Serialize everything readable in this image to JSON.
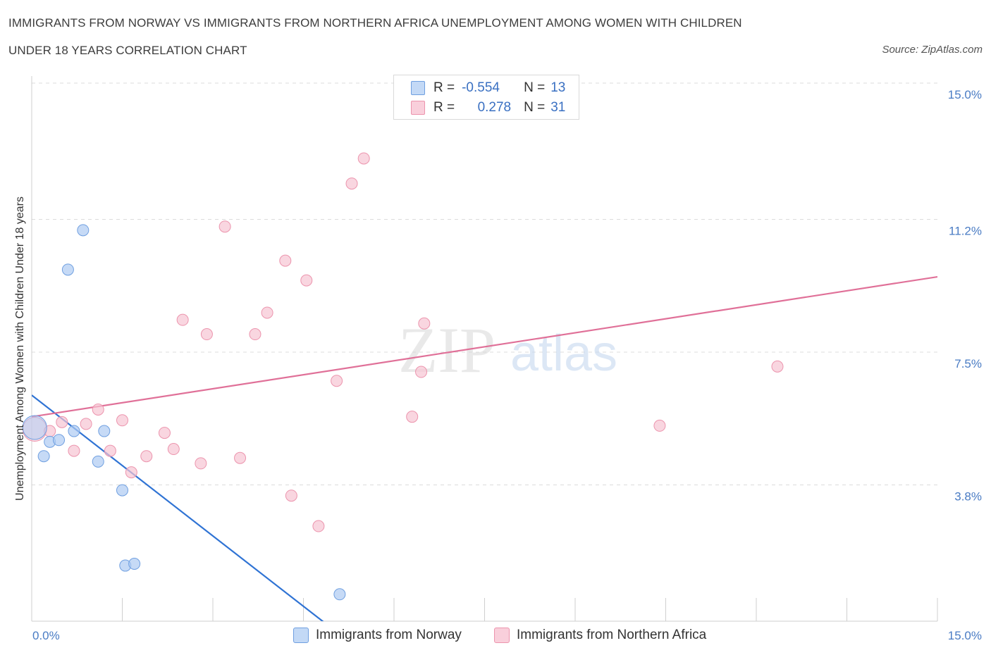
{
  "chart_data": {
    "type": "scatter",
    "title_line1": "IMMIGRANTS FROM NORWAY VS IMMIGRANTS FROM NORTHERN AFRICA UNEMPLOYMENT AMONG WOMEN WITH CHILDREN",
    "title_line2": "UNDER 18 YEARS CORRELATION CHART",
    "source": "Source: ZipAtlas.com",
    "ylabel": "Unemployment Among Women with Children Under 18 years",
    "xlim": [
      0,
      15
    ],
    "ylim": [
      0,
      15
    ],
    "x_tick_labels": [
      "0.0%",
      "15.0%"
    ],
    "y_ticks": [
      3.8,
      7.5,
      11.2,
      15.0
    ],
    "y_tick_labels": [
      "3.8%",
      "7.5%",
      "11.2%",
      "15.0%"
    ],
    "watermark": {
      "zip": "ZIP",
      "atlas": "atlas"
    },
    "legend": {
      "rows": [
        {
          "r_label": "R =",
          "r_value": "-0.554",
          "n_label": "N =",
          "n_value": "13"
        },
        {
          "r_label": "R =",
          "r_value": "0.278",
          "n_label": "N =",
          "n_value": "31"
        }
      ]
    },
    "series": [
      {
        "name": "Immigrants from Norway",
        "fill": "#aecbf2",
        "stroke": "#6f9fe0",
        "line_color": "#2f73d4",
        "trend": {
          "x": [
            0.0,
            5.2
          ],
          "y": [
            6.3,
            -0.5
          ]
        },
        "points": [
          {
            "x": 0.05,
            "y": 5.4,
            "size": "large"
          },
          {
            "x": 0.2,
            "y": 4.6
          },
          {
            "x": 0.3,
            "y": 5.0
          },
          {
            "x": 0.45,
            "y": 5.05
          },
          {
            "x": 0.6,
            "y": 9.8
          },
          {
            "x": 0.7,
            "y": 5.3
          },
          {
            "x": 0.85,
            "y": 10.9
          },
          {
            "x": 1.1,
            "y": 4.45
          },
          {
            "x": 1.2,
            "y": 5.3
          },
          {
            "x": 1.5,
            "y": 3.65
          },
          {
            "x": 1.55,
            "y": 1.55
          },
          {
            "x": 1.7,
            "y": 1.6
          },
          {
            "x": 5.1,
            "y": 0.75
          }
        ]
      },
      {
        "name": "Immigrants from Northern Africa",
        "fill": "#f7c4d3",
        "stroke": "#ec94ad",
        "line_color": "#e07098",
        "trend": {
          "x": [
            0.0,
            15.0
          ],
          "y": [
            5.7,
            9.6
          ]
        },
        "points": [
          {
            "x": 0.05,
            "y": 5.35,
            "size": "large"
          },
          {
            "x": 0.3,
            "y": 5.3
          },
          {
            "x": 0.5,
            "y": 5.55
          },
          {
            "x": 0.7,
            "y": 4.75
          },
          {
            "x": 0.9,
            "y": 5.5
          },
          {
            "x": 1.1,
            "y": 5.9
          },
          {
            "x": 1.3,
            "y": 4.75
          },
          {
            "x": 1.5,
            "y": 5.6
          },
          {
            "x": 1.65,
            "y": 4.15
          },
          {
            "x": 1.9,
            "y": 4.6
          },
          {
            "x": 2.2,
            "y": 5.25
          },
          {
            "x": 2.35,
            "y": 4.8
          },
          {
            "x": 2.5,
            "y": 8.4
          },
          {
            "x": 2.8,
            "y": 4.4
          },
          {
            "x": 2.9,
            "y": 8.0
          },
          {
            "x": 3.2,
            "y": 11.0
          },
          {
            "x": 3.45,
            "y": 4.55
          },
          {
            "x": 3.7,
            "y": 8.0
          },
          {
            "x": 3.9,
            "y": 8.6
          },
          {
            "x": 4.2,
            "y": 10.05
          },
          {
            "x": 4.3,
            "y": 3.5
          },
          {
            "x": 4.55,
            "y": 9.5
          },
          {
            "x": 4.75,
            "y": 2.65
          },
          {
            "x": 5.05,
            "y": 6.7
          },
          {
            "x": 5.3,
            "y": 12.2
          },
          {
            "x": 5.5,
            "y": 12.9
          },
          {
            "x": 6.3,
            "y": 5.7
          },
          {
            "x": 6.45,
            "y": 6.95
          },
          {
            "x": 6.5,
            "y": 8.3
          },
          {
            "x": 10.4,
            "y": 5.45
          },
          {
            "x": 12.35,
            "y": 7.1
          }
        ]
      }
    ]
  }
}
